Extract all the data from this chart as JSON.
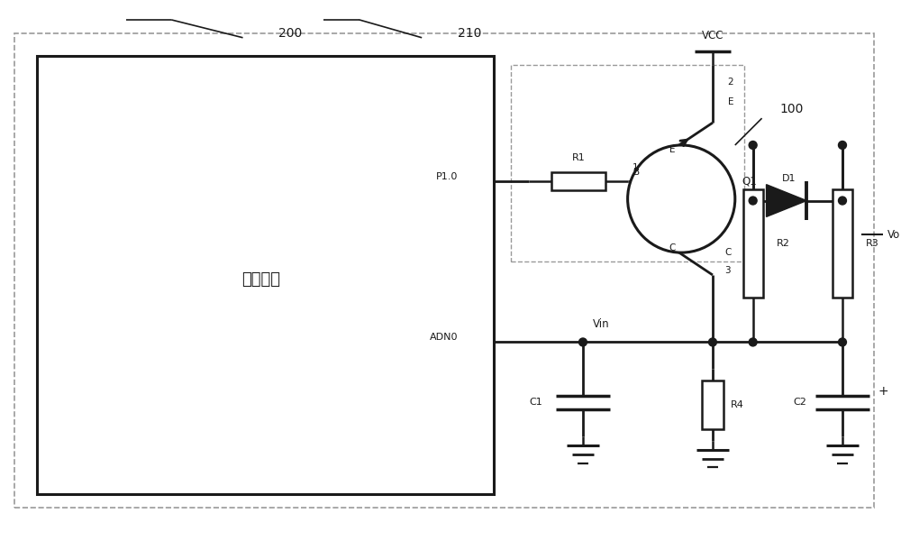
{
  "bg_color": "#ffffff",
  "line_color": "#1a1a1a",
  "dash_color": "#999999",
  "figsize": [
    10.0,
    6.0
  ],
  "dpi": 100,
  "xlim": [
    0,
    100
  ],
  "ylim": [
    0,
    60
  ]
}
